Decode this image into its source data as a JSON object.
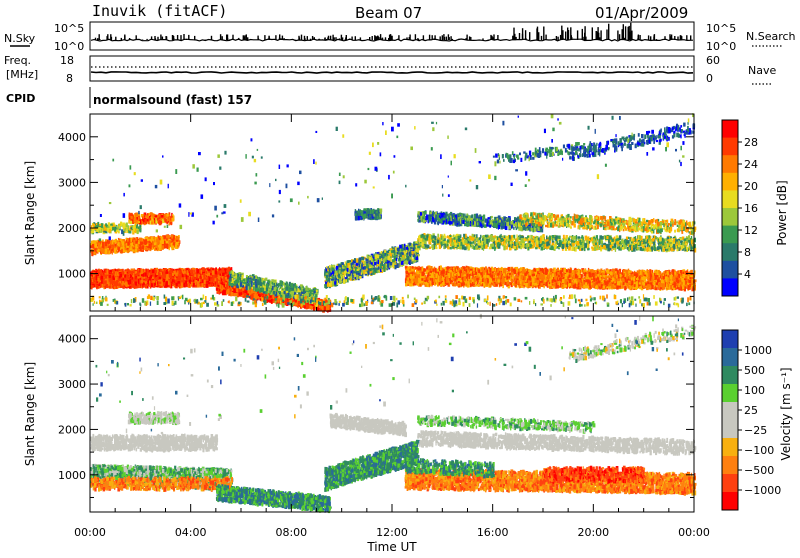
{
  "header": {
    "station": "Inuvik (fitACF)",
    "beam": "Beam 07",
    "date": "01/Apr/2009"
  },
  "top_panels": {
    "nsky_label": "N.Sky",
    "nsky_scale_top": "10^5",
    "nsky_scale_bottom": "10^0",
    "nsearch_label": "N.Search",
    "nsearch_scale_top": "10^5",
    "nsearch_scale_bottom": "10^0",
    "freq_label": "Freq.",
    "freq_unit": "[MHz]",
    "freq_scale_top": "18",
    "freq_scale_bottom": "8",
    "nave_label": "Nave",
    "nave_scale_top": "60",
    "nave_scale_bottom": "0",
    "cpid_label": "CPID",
    "cpid_value": "normalsound (fast) 157"
  },
  "chart_data": [
    {
      "type": "heatmap",
      "name": "power",
      "ylabel": "Slant Range [km]",
      "ylim": [
        180,
        4500
      ],
      "yticks": [
        "1000",
        "2000",
        "3000",
        "4000"
      ],
      "colorbar_label": "Power [dB]",
      "colorbar_ticks": [
        "28",
        "24",
        "20",
        "16",
        "12",
        "8",
        "4"
      ],
      "colorbar_colors": [
        "#ff0000",
        "#ff3a00",
        "#ff7a00",
        "#ffb000",
        "#e8dc20",
        "#9cc83a",
        "#3a9a50",
        "#2a7a6a",
        "#1e4fa0",
        "#0000ff"
      ]
    },
    {
      "type": "heatmap",
      "name": "velocity",
      "ylabel": "Slant Range [km]",
      "ylim": [
        180,
        4500
      ],
      "yticks": [
        "1000",
        "2000",
        "3000",
        "4000"
      ],
      "colorbar_label": "Velocity [m s⁻¹]",
      "colorbar_ticks": [
        "1000",
        "500",
        "100",
        "25",
        "−25",
        "−100",
        "−500",
        "−1000"
      ],
      "colorbar_colors": [
        "#1f3fb0",
        "#2a6a9a",
        "#2f8a60",
        "#5ad030",
        "#c8c8c0",
        "#c8c8c0",
        "#f8b010",
        "#ff8010",
        "#ff4010",
        "#ff0000"
      ]
    }
  ],
  "x_axis": {
    "label": "Time UT",
    "ticks": [
      "00:00",
      "04:00",
      "08:00",
      "12:00",
      "16:00",
      "20:00",
      "00:00"
    ]
  }
}
